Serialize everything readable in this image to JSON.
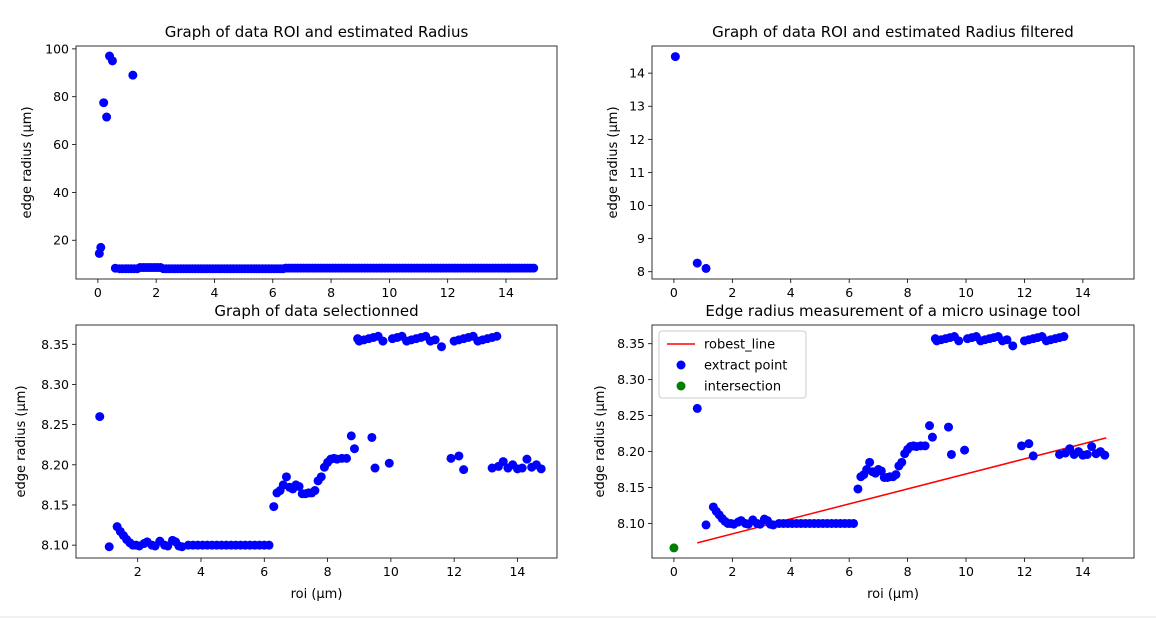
{
  "chart_data": [
    {
      "type": "scatter",
      "title": "Graph of data ROI and estimated Radius",
      "xlabel": "",
      "ylabel": "edge radius (µm)",
      "xlim": [
        -0.75,
        15.75
      ],
      "ylim": [
        3.8,
        101.2
      ],
      "xticks": [
        0,
        2,
        4,
        6,
        8,
        10,
        12,
        14
      ],
      "yticks": [
        20,
        40,
        60,
        80,
        100
      ],
      "grid": false,
      "series": [
        {
          "color": "#0000ff",
          "x": [
            0.05,
            0.1,
            0.3,
            0.4,
            0.5,
            0.6,
            1.2,
            0.2
          ],
          "y": [
            14.5,
            17.0,
            71.5,
            97.0,
            95.0,
            8.3,
            89.0,
            77.5
          ],
          "band": {
            "x_start": 0.75,
            "x_end": 15.0,
            "step": 0.1,
            "y": 8.1,
            "bumps": [
              [
                1.4,
                2.2,
                8.6
              ],
              [
                6.4,
                15.0,
                8.35
              ]
            ]
          }
        }
      ]
    },
    {
      "type": "scatter",
      "title": "Graph of data ROI and estimated Radius filtered",
      "xlabel": "",
      "ylabel": "edge radius (µm)",
      "xlim": [
        -0.75,
        15.75
      ],
      "ylim": [
        7.78,
        14.82
      ],
      "xticks": [
        0,
        2,
        4,
        6,
        8,
        10,
        12,
        14
      ],
      "yticks": [
        8,
        9,
        10,
        11,
        12,
        13,
        14
      ],
      "grid": false,
      "series": [
        {
          "color": "#0000ff",
          "x": [
            0.05,
            0.8,
            1.1
          ],
          "y": [
            14.5,
            8.26,
            8.1
          ]
        }
      ]
    },
    {
      "type": "scatter",
      "title": "Graph of data selectionned",
      "xlabel": "roi (µm)",
      "ylabel": "edge radius (µm)",
      "xlim": [
        0.05,
        15.25
      ],
      "ylim": [
        8.084,
        8.374
      ],
      "xticks": [
        2,
        4,
        6,
        8,
        10,
        12,
        14
      ],
      "yticks": [
        8.1,
        8.15,
        8.2,
        8.25,
        8.3,
        8.35
      ],
      "ytick_format": 2,
      "grid": false,
      "series": [
        {
          "color": "#0000ff",
          "x": [
            0.8,
            1.1,
            1.35,
            1.45,
            1.55,
            1.65,
            1.75,
            1.85,
            1.95,
            2.05,
            2.2,
            2.3,
            2.45,
            2.55,
            2.7,
            2.85,
            2.95,
            3.1,
            3.2,
            3.3,
            3.4,
            6.3,
            6.4,
            6.5,
            6.6,
            6.7,
            6.8,
            6.9,
            7.0,
            7.1,
            7.2,
            7.3,
            7.4,
            7.5,
            7.6,
            7.7,
            7.8,
            7.9,
            8.0,
            8.1,
            8.2,
            8.3,
            8.45,
            8.6,
            8.75,
            8.85,
            8.95,
            9.4,
            9.5,
            9.95,
            11.6,
            11.9,
            12.15,
            12.3,
            13.2,
            13.4,
            13.55,
            13.7,
            13.85,
            14.0,
            14.15,
            14.3,
            14.45,
            14.6,
            14.75
          ],
          "y": [
            8.26,
            8.098,
            8.123,
            8.117,
            8.112,
            8.107,
            8.103,
            8.1,
            8.1,
            8.099,
            8.102,
            8.104,
            8.1,
            8.099,
            8.105,
            8.1,
            8.099,
            8.106,
            8.104,
            8.099,
            8.098,
            8.148,
            8.165,
            8.168,
            8.175,
            8.185,
            8.172,
            8.17,
            8.175,
            8.173,
            8.164,
            8.164,
            8.165,
            8.165,
            8.168,
            8.18,
            8.185,
            8.197,
            8.203,
            8.207,
            8.208,
            8.207,
            8.208,
            8.208,
            8.236,
            8.22,
            8.357,
            8.234,
            8.196,
            8.202,
            8.347,
            8.208,
            8.211,
            8.194,
            8.196,
            8.198,
            8.204,
            8.196,
            8.2,
            8.195,
            8.196,
            8.207,
            8.197,
            8.2,
            8.195
          ],
          "band": {
            "x_start": 3.6,
            "x_end": 6.2,
            "step": 0.15,
            "y": 8.1
          }
        },
        {
          "color": "#0000ff",
          "band": {
            "x_start": 9.0,
            "x_end": 13.4,
            "step": 0.15,
            "y": 8.357,
            "wobble": 0.003,
            "skip": [
              [
                9.8,
                10.0
              ],
              [
                11.5,
                11.9
              ]
            ]
          }
        }
      ]
    },
    {
      "type": "scatter",
      "title": "Edge radius measurement of a micro usinage tool",
      "xlabel": "roi (µm)",
      "ylabel": "edge radius (µm)",
      "xlim": [
        -0.75,
        15.75
      ],
      "ylim": [
        8.052,
        8.376
      ],
      "xticks": [
        0,
        2,
        4,
        6,
        8,
        10,
        12,
        14
      ],
      "yticks": [
        8.1,
        8.15,
        8.2,
        8.25,
        8.3,
        8.35
      ],
      "ytick_format": 2,
      "grid": false,
      "legend": {
        "position": "top-left",
        "entries": [
          "robest_line",
          "extract point",
          "intersection"
        ]
      },
      "series": [
        {
          "name": "robest_line",
          "type": "line",
          "color": "#ff0000",
          "x": [
            0.8,
            14.8
          ],
          "y": [
            8.073,
            8.219
          ]
        },
        {
          "name": "extract point",
          "color": "#0000ff",
          "same_points_as_chart": 2
        },
        {
          "name": "intersection",
          "color": "#008000",
          "x": [
            0
          ],
          "y": [
            8.066
          ]
        }
      ]
    }
  ]
}
